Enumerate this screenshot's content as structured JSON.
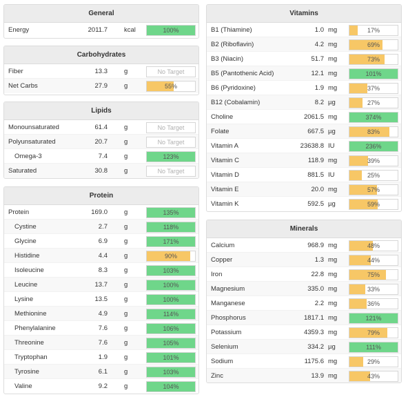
{
  "colors": {
    "green": "#6fd68a",
    "orange": "#f7c766",
    "empty": "#ffffff"
  },
  "general": {
    "title": "General",
    "rows": [
      {
        "name": "Energy",
        "amount": "2011.7",
        "unit": "kcal",
        "pct": "100%",
        "fill": 1.0,
        "status": "green"
      }
    ]
  },
  "carbs": {
    "title": "Carbohydrates",
    "rows": [
      {
        "name": "Fiber",
        "amount": "13.3",
        "unit": "g",
        "pct": "No Target",
        "fill": 0,
        "status": "none"
      },
      {
        "name": "Net Carbs",
        "amount": "27.9",
        "unit": "g",
        "pct": "55%",
        "fill": 0.55,
        "status": "orange"
      }
    ]
  },
  "lipids": {
    "title": "Lipids",
    "rows": [
      {
        "name": "Monounsaturated",
        "amount": "61.4",
        "unit": "g",
        "pct": "No Target",
        "fill": 0,
        "status": "none"
      },
      {
        "name": "Polyunsaturated",
        "amount": "20.7",
        "unit": "g",
        "pct": "No Target",
        "fill": 0,
        "status": "none"
      },
      {
        "name": "Omega-3",
        "amount": "7.4",
        "unit": "g",
        "pct": "123%",
        "fill": 1.0,
        "status": "green",
        "sub": true
      },
      {
        "name": "Saturated",
        "amount": "30.8",
        "unit": "g",
        "pct": "No Target",
        "fill": 0,
        "status": "none"
      }
    ]
  },
  "protein": {
    "title": "Protein",
    "rows": [
      {
        "name": "Protein",
        "amount": "169.0",
        "unit": "g",
        "pct": "135%",
        "fill": 1.0,
        "status": "green"
      },
      {
        "name": "Cystine",
        "amount": "2.7",
        "unit": "g",
        "pct": "118%",
        "fill": 1.0,
        "status": "green",
        "sub": true
      },
      {
        "name": "Glycine",
        "amount": "6.9",
        "unit": "g",
        "pct": "171%",
        "fill": 1.0,
        "status": "green",
        "sub": true
      },
      {
        "name": "Histidine",
        "amount": "4.4",
        "unit": "g",
        "pct": "90%",
        "fill": 0.9,
        "status": "orange",
        "sub": true
      },
      {
        "name": "Isoleucine",
        "amount": "8.3",
        "unit": "g",
        "pct": "103%",
        "fill": 1.0,
        "status": "green",
        "sub": true
      },
      {
        "name": "Leucine",
        "amount": "13.7",
        "unit": "g",
        "pct": "100%",
        "fill": 1.0,
        "status": "green",
        "sub": true
      },
      {
        "name": "Lysine",
        "amount": "13.5",
        "unit": "g",
        "pct": "100%",
        "fill": 1.0,
        "status": "green",
        "sub": true
      },
      {
        "name": "Methionine",
        "amount": "4.9",
        "unit": "g",
        "pct": "114%",
        "fill": 1.0,
        "status": "green",
        "sub": true
      },
      {
        "name": "Phenylalanine",
        "amount": "7.6",
        "unit": "g",
        "pct": "106%",
        "fill": 1.0,
        "status": "green",
        "sub": true
      },
      {
        "name": "Threonine",
        "amount": "7.6",
        "unit": "g",
        "pct": "105%",
        "fill": 1.0,
        "status": "green",
        "sub": true
      },
      {
        "name": "Tryptophan",
        "amount": "1.9",
        "unit": "g",
        "pct": "101%",
        "fill": 1.0,
        "status": "green",
        "sub": true
      },
      {
        "name": "Tyrosine",
        "amount": "6.1",
        "unit": "g",
        "pct": "103%",
        "fill": 1.0,
        "status": "green",
        "sub": true
      },
      {
        "name": "Valine",
        "amount": "9.2",
        "unit": "g",
        "pct": "104%",
        "fill": 1.0,
        "status": "green",
        "sub": true
      }
    ]
  },
  "vitamins": {
    "title": "Vitamins",
    "rows": [
      {
        "name": "B1 (Thiamine)",
        "amount": "1.0",
        "unit": "mg",
        "pct": "17%",
        "fill": 0.17,
        "status": "orange"
      },
      {
        "name": "B2 (Riboflavin)",
        "amount": "4.2",
        "unit": "mg",
        "pct": "69%",
        "fill": 0.69,
        "status": "orange"
      },
      {
        "name": "B3 (Niacin)",
        "amount": "51.7",
        "unit": "mg",
        "pct": "73%",
        "fill": 0.73,
        "status": "orange"
      },
      {
        "name": "B5 (Pantothenic Acid)",
        "amount": "12.1",
        "unit": "mg",
        "pct": "101%",
        "fill": 1.0,
        "status": "green"
      },
      {
        "name": "B6 (Pyridoxine)",
        "amount": "1.9",
        "unit": "mg",
        "pct": "37%",
        "fill": 0.37,
        "status": "orange"
      },
      {
        "name": "B12 (Cobalamin)",
        "amount": "8.2",
        "unit": "µg",
        "pct": "27%",
        "fill": 0.27,
        "status": "orange"
      },
      {
        "name": "Choline",
        "amount": "2061.5",
        "unit": "mg",
        "pct": "374%",
        "fill": 1.0,
        "status": "green"
      },
      {
        "name": "Folate",
        "amount": "667.5",
        "unit": "µg",
        "pct": "83%",
        "fill": 0.83,
        "status": "orange"
      },
      {
        "name": "Vitamin A",
        "amount": "23638.8",
        "unit": "IU",
        "pct": "236%",
        "fill": 1.0,
        "status": "green"
      },
      {
        "name": "Vitamin C",
        "amount": "118.9",
        "unit": "mg",
        "pct": "39%",
        "fill": 0.39,
        "status": "orange"
      },
      {
        "name": "Vitamin D",
        "amount": "881.5",
        "unit": "IU",
        "pct": "25%",
        "fill": 0.25,
        "status": "orange"
      },
      {
        "name": "Vitamin E",
        "amount": "20.0",
        "unit": "mg",
        "pct": "57%",
        "fill": 0.57,
        "status": "orange"
      },
      {
        "name": "Vitamin K",
        "amount": "592.5",
        "unit": "µg",
        "pct": "59%",
        "fill": 0.59,
        "status": "orange"
      }
    ]
  },
  "minerals": {
    "title": "Minerals",
    "rows": [
      {
        "name": "Calcium",
        "amount": "968.9",
        "unit": "mg",
        "pct": "48%",
        "fill": 0.48,
        "status": "orange"
      },
      {
        "name": "Copper",
        "amount": "1.3",
        "unit": "mg",
        "pct": "44%",
        "fill": 0.44,
        "status": "orange"
      },
      {
        "name": "Iron",
        "amount": "22.8",
        "unit": "mg",
        "pct": "75%",
        "fill": 0.75,
        "status": "orange"
      },
      {
        "name": "Magnesium",
        "amount": "335.0",
        "unit": "mg",
        "pct": "33%",
        "fill": 0.33,
        "status": "orange"
      },
      {
        "name": "Manganese",
        "amount": "2.2",
        "unit": "mg",
        "pct": "36%",
        "fill": 0.36,
        "status": "orange"
      },
      {
        "name": "Phosphorus",
        "amount": "1817.1",
        "unit": "mg",
        "pct": "121%",
        "fill": 1.0,
        "status": "green"
      },
      {
        "name": "Potassium",
        "amount": "4359.3",
        "unit": "mg",
        "pct": "79%",
        "fill": 0.79,
        "status": "orange"
      },
      {
        "name": "Selenium",
        "amount": "334.2",
        "unit": "µg",
        "pct": "111%",
        "fill": 1.0,
        "status": "green"
      },
      {
        "name": "Sodium",
        "amount": "1175.6",
        "unit": "mg",
        "pct": "29%",
        "fill": 0.29,
        "status": "orange"
      },
      {
        "name": "Zinc",
        "amount": "13.9",
        "unit": "mg",
        "pct": "43%",
        "fill": 0.43,
        "status": "orange"
      }
    ]
  }
}
